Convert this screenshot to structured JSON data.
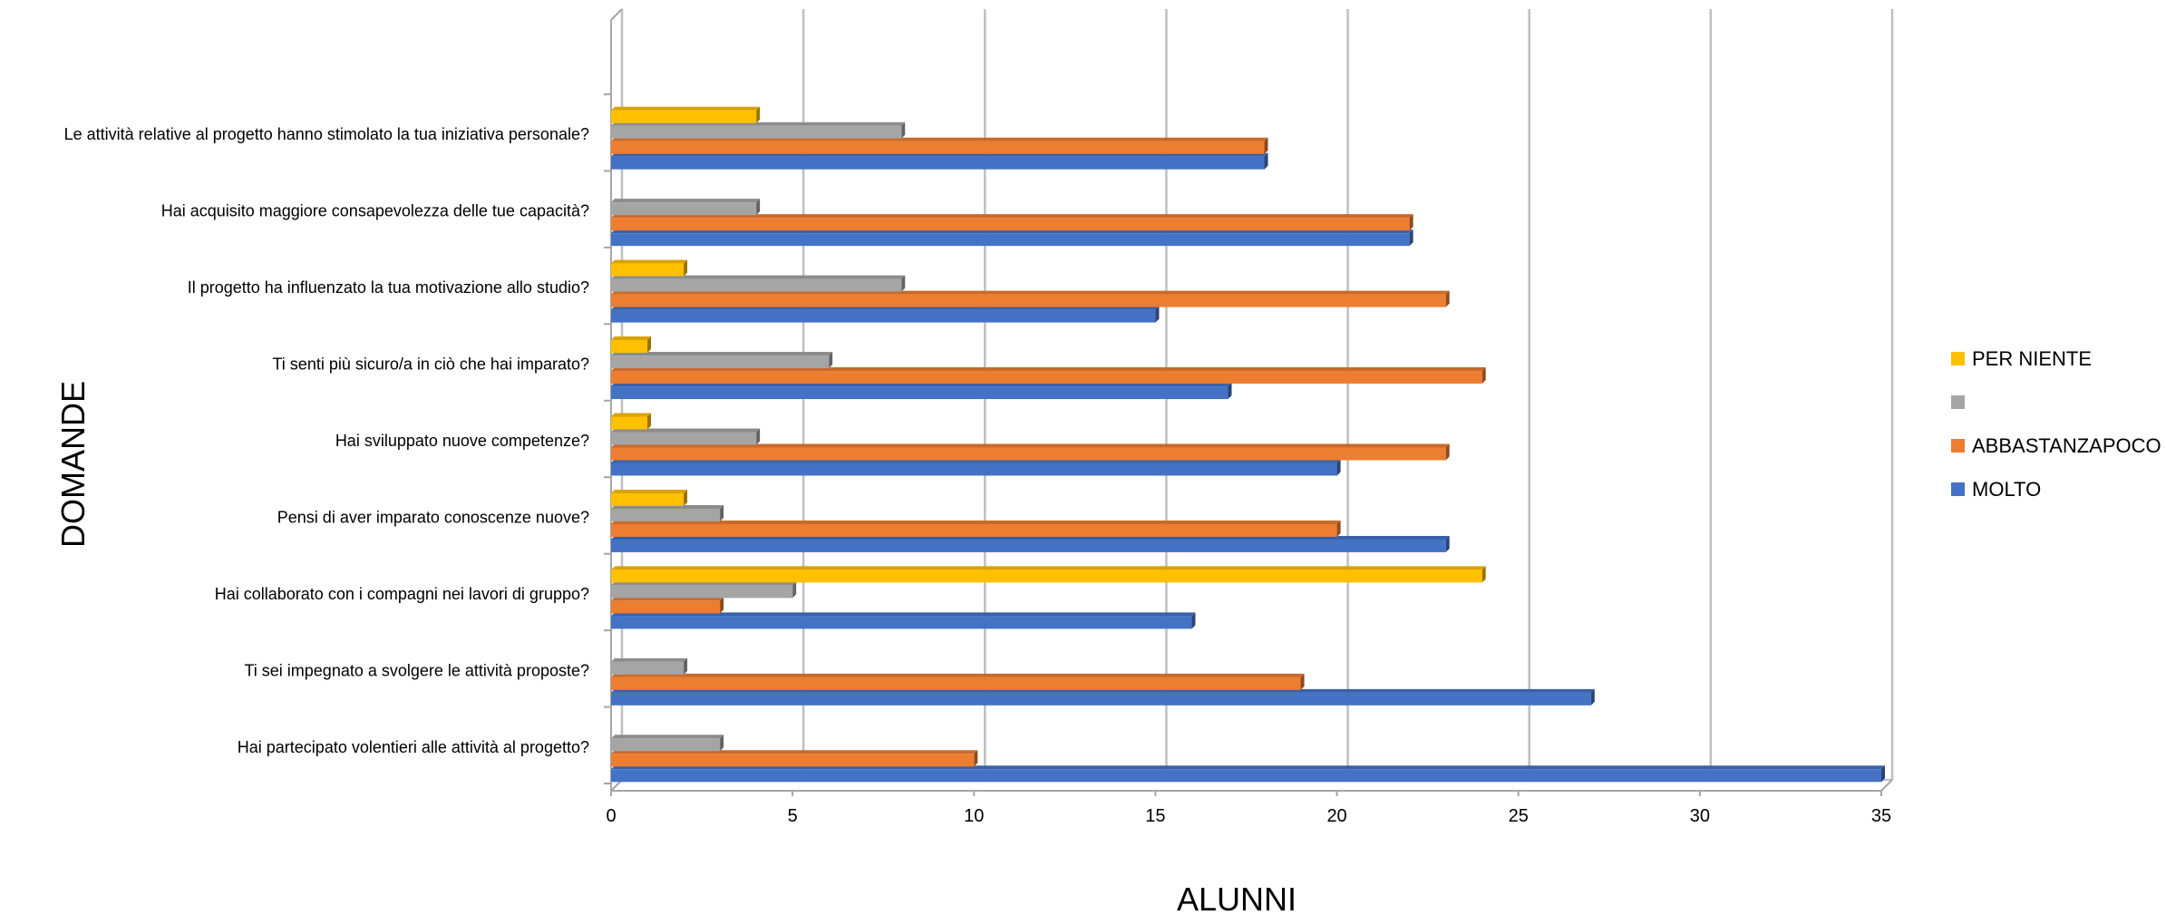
{
  "chart_data": {
    "type": "bar",
    "orientation": "horizontal",
    "xlabel": "ALUNNI",
    "ylabel": "DOMANDE",
    "xlim": [
      0,
      35
    ],
    "xticks": [
      0,
      5,
      10,
      15,
      20,
      25,
      30,
      35
    ],
    "grid": true,
    "legend_position": "right",
    "categories": [
      "Hai partecipato volentieri alle attività al progetto?",
      "Ti sei impegnato a svolgere le attività proposte?",
      "Hai collaborato con i compagni nei lavori di gruppo?",
      "Pensi di aver imparato conoscenze nuove?",
      "Hai sviluppato nuove competenze?",
      "Ti senti più sicuro/a in ciò che hai imparato?",
      "Il progetto ha influenzato la tua motivazione allo studio?",
      "Hai acquisito maggiore consapevolezza delle tue capacità?",
      "Le attività relative al progetto hanno stimolato la tua iniziativa personale?"
    ],
    "series": [
      {
        "name": "MOLTO",
        "color": "#4472C4",
        "values": [
          35,
          27,
          16,
          23,
          20,
          17,
          15,
          22,
          18
        ]
      },
      {
        "name": "ABBASTANZAPOCO",
        "color": "#ED7D31",
        "values": [
          10,
          19,
          3,
          20,
          23,
          24,
          23,
          22,
          18
        ]
      },
      {
        "name": "",
        "color": "#A5A5A5",
        "values": [
          3,
          2,
          5,
          3,
          4,
          6,
          8,
          4,
          8
        ]
      },
      {
        "name": "PER NIENTE",
        "color": "#FFC000",
        "values": [
          0,
          0,
          24,
          2,
          1,
          1,
          2,
          0,
          4
        ]
      }
    ],
    "legend_order": [
      "PER NIENTE",
      "",
      "ABBASTANZAPOCO",
      "MOLTO"
    ]
  }
}
